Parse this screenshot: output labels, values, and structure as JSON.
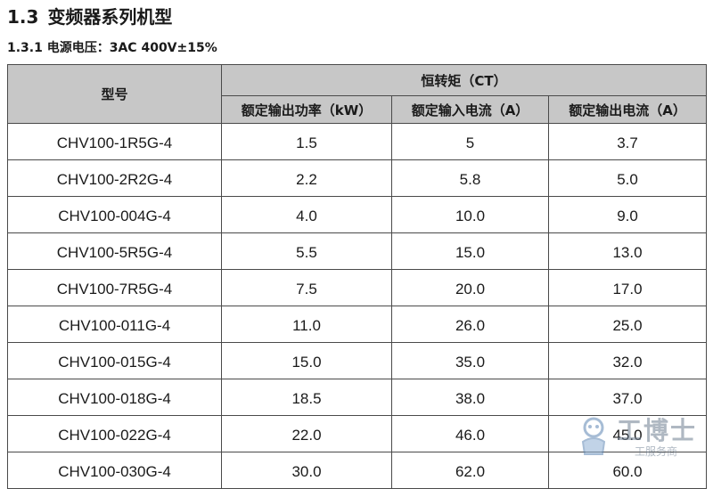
{
  "section": {
    "number": "1.3",
    "title": "变频器系列机型"
  },
  "subsection": {
    "label": "1.3.1 电源电压：3AC 400V±15%"
  },
  "table": {
    "model_header": "型号",
    "group_header": "恒转矩（CT）",
    "columns": [
      "额定输出功率（kW）",
      "额定输入电流（A）",
      "额定输出电流（A）"
    ],
    "rows": [
      [
        "CHV100-1R5G-4",
        "1.5",
        "5",
        "3.7"
      ],
      [
        "CHV100-2R2G-4",
        "2.2",
        "5.8",
        "5.0"
      ],
      [
        "CHV100-004G-4",
        "4.0",
        "10.0",
        "9.0"
      ],
      [
        "CHV100-5R5G-4",
        "5.5",
        "15.0",
        "13.0"
      ],
      [
        "CHV100-7R5G-4",
        "7.5",
        "20.0",
        "17.0"
      ],
      [
        "CHV100-011G-4",
        "11.0",
        "26.0",
        "25.0"
      ],
      [
        "CHV100-015G-4",
        "15.0",
        "35.0",
        "32.0"
      ],
      [
        "CHV100-018G-4",
        "18.5",
        "38.0",
        "37.0"
      ],
      [
        "CHV100-022G-4",
        "22.0",
        "46.0",
        "45.0"
      ],
      [
        "CHV100-030G-4",
        "30.0",
        "62.0",
        "60.0"
      ]
    ]
  },
  "watermark": {
    "text": "工博士",
    "sub": "工服务商"
  }
}
